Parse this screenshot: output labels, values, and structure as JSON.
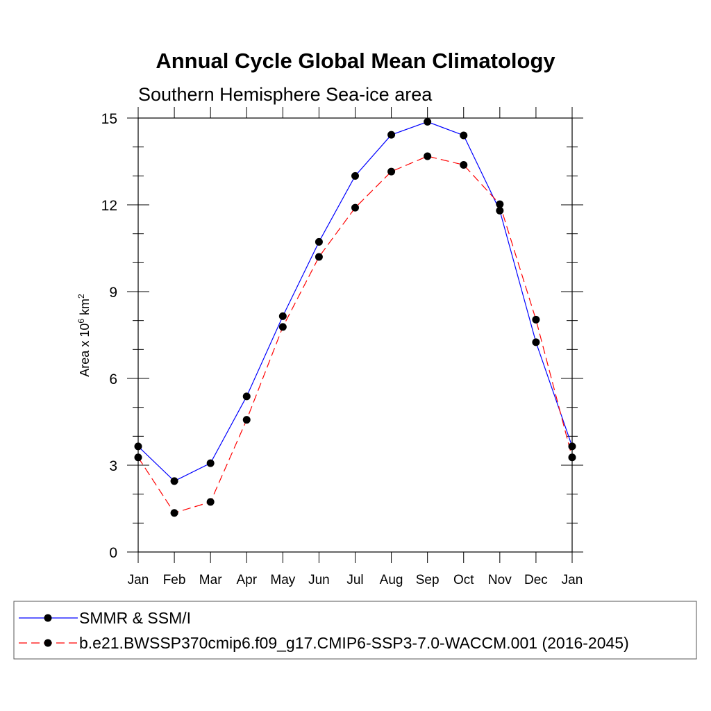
{
  "chart_data": {
    "type": "line",
    "title": "Annual Cycle Global Mean Climatology",
    "subtitle": "Southern Hemisphere Sea-ice area",
    "ylabel": {
      "base": "Area x 10",
      "exp": "6",
      "unit": " km",
      "unit_exp": "2"
    },
    "xlabel": "",
    "categories": [
      "Jan",
      "Feb",
      "Mar",
      "Apr",
      "May",
      "Jun",
      "Jul",
      "Aug",
      "Sep",
      "Oct",
      "Nov",
      "Dec",
      "Jan"
    ],
    "ylim": [
      0,
      15
    ],
    "yticks": [
      0,
      3,
      6,
      9,
      12,
      15
    ],
    "series": [
      {
        "name": "SMMR & SSM/I",
        "color": "#0000ff",
        "dash": "solid",
        "values": [
          3.65,
          2.45,
          3.07,
          5.38,
          8.15,
          10.72,
          13.0,
          14.42,
          14.87,
          14.4,
          11.8,
          7.25,
          3.65
        ]
      },
      {
        "name": "b.e21.BWSSP370cmip6.f09_g17.CMIP6-SSP3-7.0-WACCM.001 (2016-2045)",
        "color": "#ff0000",
        "dash": "dashed",
        "values": [
          3.27,
          1.35,
          1.73,
          4.57,
          7.78,
          10.2,
          11.9,
          13.15,
          13.68,
          13.38,
          12.02,
          8.03,
          3.27
        ]
      }
    ],
    "legend_position": "bottom"
  }
}
